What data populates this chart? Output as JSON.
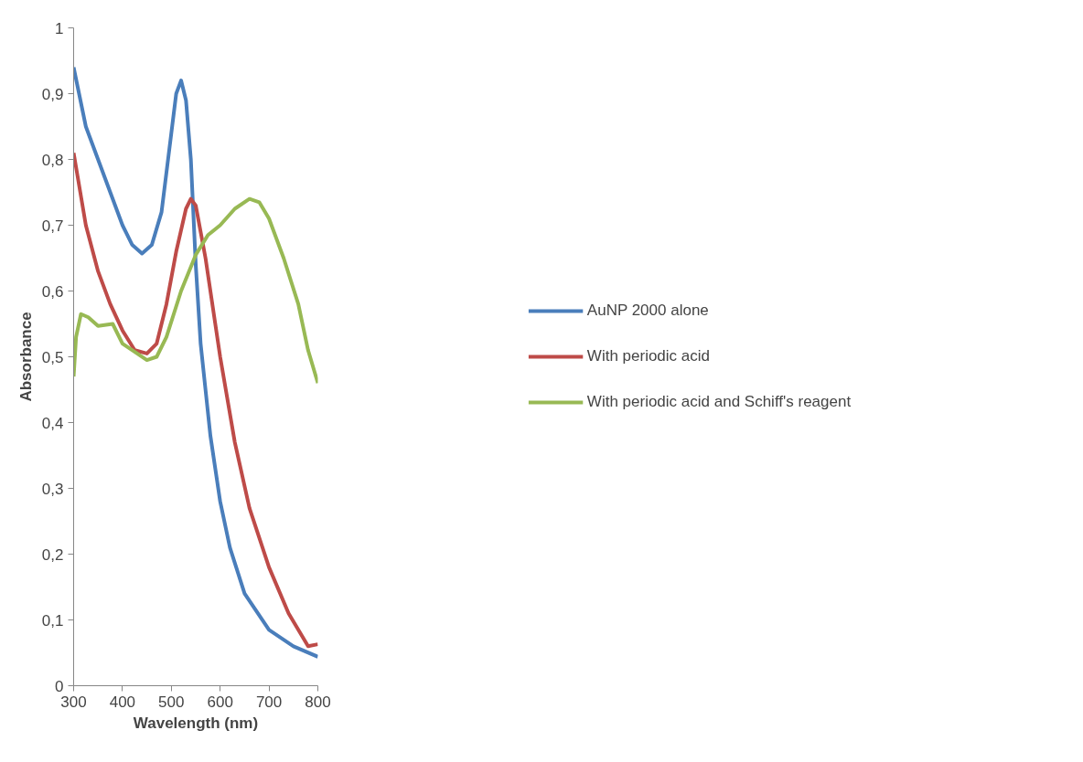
{
  "chart_data": {
    "type": "line",
    "xlabel": "Wavelength (nm)",
    "ylabel": "Absorbance",
    "xlim": [
      300,
      800
    ],
    "xticks": [
      300,
      400,
      500,
      600,
      700,
      800
    ],
    "ylim": [
      0,
      1
    ],
    "yticks": [
      {
        "value": 0,
        "label": "0"
      },
      {
        "value": 0.1,
        "label": "0,1"
      },
      {
        "value": 0.2,
        "label": "0,2"
      },
      {
        "value": 0.3,
        "label": "0,3"
      },
      {
        "value": 0.4,
        "label": "0,4"
      },
      {
        "value": 0.5,
        "label": "0,5"
      },
      {
        "value": 0.6,
        "label": "0,6"
      },
      {
        "value": 0.7,
        "label": "0,7"
      },
      {
        "value": 0.8,
        "label": "0,8"
      },
      {
        "value": 0.9,
        "label": "0,9"
      },
      {
        "value": 1,
        "label": "1"
      }
    ],
    "grid": false,
    "legend": "right",
    "marker": "none",
    "line_style": "solid",
    "series": [
      {
        "name": "AuNP 2000 alone",
        "color": "#4a7ebb",
        "x": [
          300,
          325,
          350,
          375,
          400,
          420,
          440,
          460,
          480,
          500,
          510,
          520,
          530,
          540,
          550,
          560,
          580,
          600,
          620,
          650,
          700,
          750,
          800
        ],
        "values": [
          0.94,
          0.85,
          0.8,
          0.75,
          0.7,
          0.67,
          0.657,
          0.67,
          0.72,
          0.84,
          0.9,
          0.92,
          0.89,
          0.8,
          0.64,
          0.52,
          0.38,
          0.28,
          0.21,
          0.14,
          0.085,
          0.06,
          0.044
        ]
      },
      {
        "name": "With periodic acid",
        "color": "#be4b48",
        "x": [
          300,
          325,
          350,
          375,
          400,
          425,
          450,
          470,
          490,
          510,
          530,
          540,
          550,
          570,
          600,
          630,
          660,
          700,
          740,
          760,
          780,
          800
        ],
        "values": [
          0.81,
          0.7,
          0.63,
          0.58,
          0.54,
          0.51,
          0.505,
          0.52,
          0.58,
          0.66,
          0.725,
          0.74,
          0.73,
          0.65,
          0.5,
          0.37,
          0.27,
          0.18,
          0.11,
          0.085,
          0.06,
          0.063
        ]
      },
      {
        "name": "With periodic acid and Schiff's reagent",
        "color": "#98b954",
        "x": [
          300,
          305,
          315,
          330,
          350,
          380,
          400,
          430,
          450,
          470,
          490,
          520,
          550,
          575,
          600,
          630,
          660,
          680,
          700,
          730,
          760,
          780,
          800
        ],
        "values": [
          0.47,
          0.53,
          0.565,
          0.56,
          0.547,
          0.55,
          0.52,
          0.505,
          0.495,
          0.5,
          0.53,
          0.6,
          0.655,
          0.685,
          0.7,
          0.725,
          0.74,
          0.735,
          0.71,
          0.65,
          0.58,
          0.51,
          0.46
        ]
      }
    ]
  }
}
